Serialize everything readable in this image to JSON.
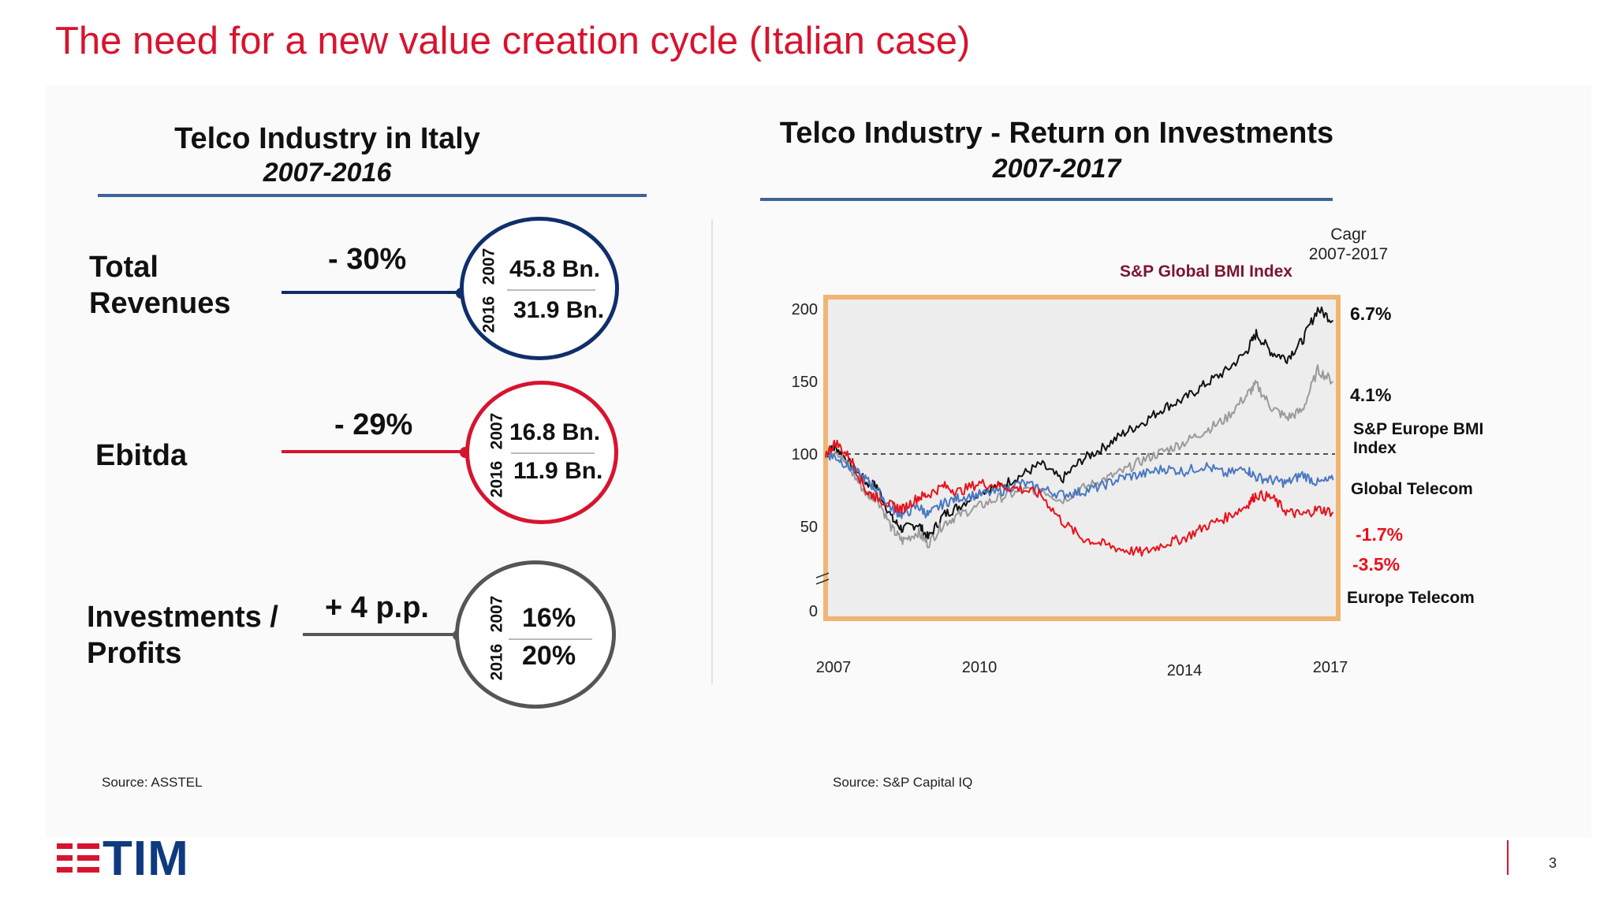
{
  "slide": {
    "title": "The need for a new value creation cycle (Italian case)",
    "page_number": "3",
    "logo_text": "TIM"
  },
  "left_panel": {
    "title": "Telco Industry in Italy",
    "subtitle": "2007-2016",
    "source": "Source: ASSTEL",
    "metrics": [
      {
        "label_line1": "Total",
        "label_line2": "Revenues",
        "delta": "- 30%",
        "year_top": "2007",
        "value_top": "45.8 Bn.",
        "year_bottom": "2016",
        "value_bottom": "31.9 Bn.",
        "color": "#0f2f6b"
      },
      {
        "label_line1": "Ebitda",
        "label_line2": "",
        "delta": "- 29%",
        "year_top": "2007",
        "value_top": "16.8 Bn.",
        "year_bottom": "2016",
        "value_bottom": "11.9 Bn.",
        "color": "#d7142f"
      },
      {
        "label_line1": "Investments /",
        "label_line2": "Profits",
        "delta": "+ 4 p.p.",
        "year_top": "2007",
        "value_top": "16%",
        "year_bottom": "2016",
        "value_bottom": "20%",
        "color": "#555555"
      }
    ]
  },
  "right_panel": {
    "title": "Telco Industry - Return on Investments",
    "subtitle": "2007-2017",
    "source": "Source: S&P Capital IQ",
    "cagr_header_line1": "Cagr",
    "cagr_header_line2": "2007-2017",
    "legend": {
      "global_bmi": "S&P Global BMI Index",
      "europe_bmi_line1": "S&P Europe BMI",
      "europe_bmi_line2": "Index",
      "global_telecom": "Global Telecom",
      "europe_telecom": "Europe Telecom"
    },
    "cagr_values": {
      "global_bmi": "6.7%",
      "europe_bmi": "4.1%",
      "global_telecom": "-1.7%",
      "europe_telecom": "-3.5%"
    }
  },
  "chart_data": {
    "type": "line",
    "title": "Telco Industry - Return on Investments",
    "subtitle": "2007-2017",
    "xlabel": "",
    "ylabel": "",
    "x_ticks": [
      "2007",
      "2010",
      "2014",
      "2017"
    ],
    "y_ticks": [
      0,
      50,
      100,
      150,
      200
    ],
    "ylim": [
      0,
      200
    ],
    "xlim": [
      2007,
      2017
    ],
    "grid": false,
    "reference_line": 100,
    "series": [
      {
        "name": "S&P Global BMI Index",
        "color": "#111111",
        "cagr": "6.7%",
        "x": [
          2007.0,
          2007.2,
          2007.5,
          2007.8,
          2008.0,
          2008.3,
          2008.5,
          2008.8,
          2009.0,
          2009.3,
          2009.6,
          2010.0,
          2010.4,
          2010.8,
          2011.2,
          2011.6,
          2012.0,
          2012.4,
          2012.8,
          2013.2,
          2013.6,
          2014.0,
          2014.4,
          2014.8,
          2015.2,
          2015.4,
          2015.7,
          2016.0,
          2016.3,
          2016.6,
          2016.9
        ],
        "y": [
          100,
          105,
          92,
          80,
          78,
          55,
          48,
          52,
          42,
          58,
          64,
          74,
          78,
          85,
          93,
          82,
          96,
          104,
          114,
          122,
          132,
          138,
          148,
          157,
          170,
          183,
          170,
          166,
          178,
          200,
          192
        ]
      },
      {
        "name": "S&P Europe BMI Index",
        "color": "#9a9a9a",
        "cagr": "4.1%",
        "x": [
          2007.0,
          2007.2,
          2007.5,
          2007.8,
          2008.0,
          2008.3,
          2008.5,
          2008.8,
          2009.0,
          2009.3,
          2009.6,
          2010.0,
          2010.4,
          2010.8,
          2011.2,
          2011.6,
          2012.0,
          2012.4,
          2012.8,
          2013.2,
          2013.6,
          2014.0,
          2014.4,
          2014.8,
          2015.2,
          2015.4,
          2015.7,
          2016.0,
          2016.3,
          2016.6,
          2016.9
        ],
        "y": [
          100,
          103,
          88,
          72,
          70,
          48,
          40,
          46,
          38,
          52,
          58,
          64,
          70,
          74,
          76,
          68,
          76,
          82,
          88,
          96,
          102,
          108,
          116,
          124,
          140,
          148,
          132,
          125,
          130,
          158,
          150
        ]
      },
      {
        "name": "Global Telecom",
        "color": "#4a78c0",
        "cagr": "-1.7%",
        "x": [
          2007.0,
          2007.2,
          2007.5,
          2007.8,
          2008.0,
          2008.3,
          2008.5,
          2008.8,
          2009.0,
          2009.3,
          2009.6,
          2010.0,
          2010.4,
          2010.8,
          2011.2,
          2011.6,
          2012.0,
          2012.4,
          2012.8,
          2013.2,
          2013.6,
          2014.0,
          2014.4,
          2014.8,
          2015.2,
          2015.4,
          2015.7,
          2016.0,
          2016.3,
          2016.6,
          2016.9
        ],
        "y": [
          100,
          98,
          90,
          82,
          75,
          62,
          58,
          64,
          58,
          66,
          70,
          72,
          74,
          80,
          76,
          72,
          74,
          78,
          84,
          86,
          90,
          88,
          92,
          86,
          90,
          84,
          82,
          80,
          86,
          80,
          82
        ]
      },
      {
        "name": "Europe Telecom",
        "color": "#e8121b",
        "cagr": "-3.5%",
        "x": [
          2007.0,
          2007.2,
          2007.5,
          2007.8,
          2008.0,
          2008.3,
          2008.5,
          2008.8,
          2009.0,
          2009.3,
          2009.6,
          2010.0,
          2010.4,
          2010.8,
          2011.2,
          2011.6,
          2012.0,
          2012.4,
          2012.8,
          2013.2,
          2013.6,
          2014.0,
          2014.4,
          2014.8,
          2015.2,
          2015.4,
          2015.7,
          2016.0,
          2016.3,
          2016.6,
          2016.9
        ],
        "y": [
          100,
          108,
          96,
          74,
          70,
          64,
          62,
          70,
          72,
          78,
          74,
          80,
          78,
          76,
          72,
          54,
          42,
          38,
          34,
          32,
          38,
          42,
          50,
          56,
          64,
          72,
          70,
          60,
          58,
          62,
          60
        ]
      }
    ]
  }
}
